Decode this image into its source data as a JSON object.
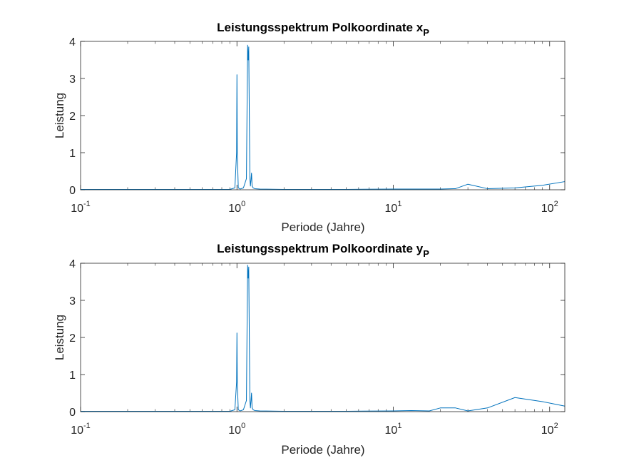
{
  "chart_data": [
    {
      "type": "line",
      "title": "Leistungsspektrum Polkoordinate x",
      "title_subscript": "P",
      "xlabel": "Periode (Jahre)",
      "ylabel": "Leistung",
      "xscale": "log",
      "xlim": [
        0.1,
        125
      ],
      "ylim": [
        0,
        4
      ],
      "x_ticks": [
        {
          "base": "10",
          "exp": "-1"
        },
        {
          "base": "10",
          "exp": "0"
        },
        {
          "base": "10",
          "exp": "1"
        },
        {
          "base": "10",
          "exp": "2"
        }
      ],
      "y_ticks": [
        "0",
        "1",
        "2",
        "3",
        "4"
      ],
      "grid": false,
      "color": "#0072BD",
      "series": [
        {
          "x": [
            0.1,
            0.5,
            0.9,
            0.97,
            0.995,
            1.0,
            1.005,
            1.02,
            1.05,
            1.1,
            1.15,
            1.17,
            1.18,
            1.19,
            1.2,
            1.21,
            1.22,
            1.24,
            1.25,
            1.27,
            1.3,
            1.4,
            2,
            5,
            10,
            20,
            25,
            30,
            40,
            60,
            90,
            125
          ],
          "y": [
            0.01,
            0.01,
            0.01,
            0.05,
            1.0,
            3.1,
            1.0,
            0.05,
            0.02,
            0.05,
            0.3,
            3.9,
            3.5,
            3.85,
            2.0,
            0.3,
            0.1,
            0.45,
            0.1,
            0.05,
            0.03,
            0.02,
            0.01,
            0.01,
            0.02,
            0.02,
            0.03,
            0.15,
            0.03,
            0.05,
            0.12,
            0.22
          ]
        }
      ]
    },
    {
      "type": "line",
      "title": "Leistungsspektrum Polkoordinate y",
      "title_subscript": "P",
      "xlabel": "Periode (Jahre)",
      "ylabel": "Leistung",
      "xscale": "log",
      "xlim": [
        0.1,
        125
      ],
      "ylim": [
        0,
        4
      ],
      "x_ticks": [
        {
          "base": "10",
          "exp": "-1"
        },
        {
          "base": "10",
          "exp": "0"
        },
        {
          "base": "10",
          "exp": "1"
        },
        {
          "base": "10",
          "exp": "2"
        }
      ],
      "y_ticks": [
        "0",
        "1",
        "2",
        "3",
        "4"
      ],
      "grid": false,
      "color": "#0072BD",
      "series": [
        {
          "x": [
            0.1,
            0.5,
            0.9,
            0.97,
            0.995,
            1.0,
            1.005,
            1.02,
            1.05,
            1.1,
            1.15,
            1.17,
            1.18,
            1.19,
            1.2,
            1.21,
            1.22,
            1.24,
            1.25,
            1.27,
            1.3,
            1.4,
            2,
            5,
            10,
            13,
            17,
            20,
            25,
            30,
            40,
            60,
            90,
            125
          ],
          "y": [
            0.01,
            0.01,
            0.01,
            0.05,
            0.8,
            2.12,
            0.8,
            0.05,
            0.02,
            0.05,
            0.3,
            3.95,
            3.6,
            3.9,
            2.0,
            0.3,
            0.1,
            0.5,
            0.1,
            0.05,
            0.03,
            0.02,
            0.01,
            0.01,
            0.02,
            0.03,
            0.02,
            0.1,
            0.1,
            0.02,
            0.1,
            0.38,
            0.27,
            0.15
          ]
        }
      ]
    }
  ]
}
